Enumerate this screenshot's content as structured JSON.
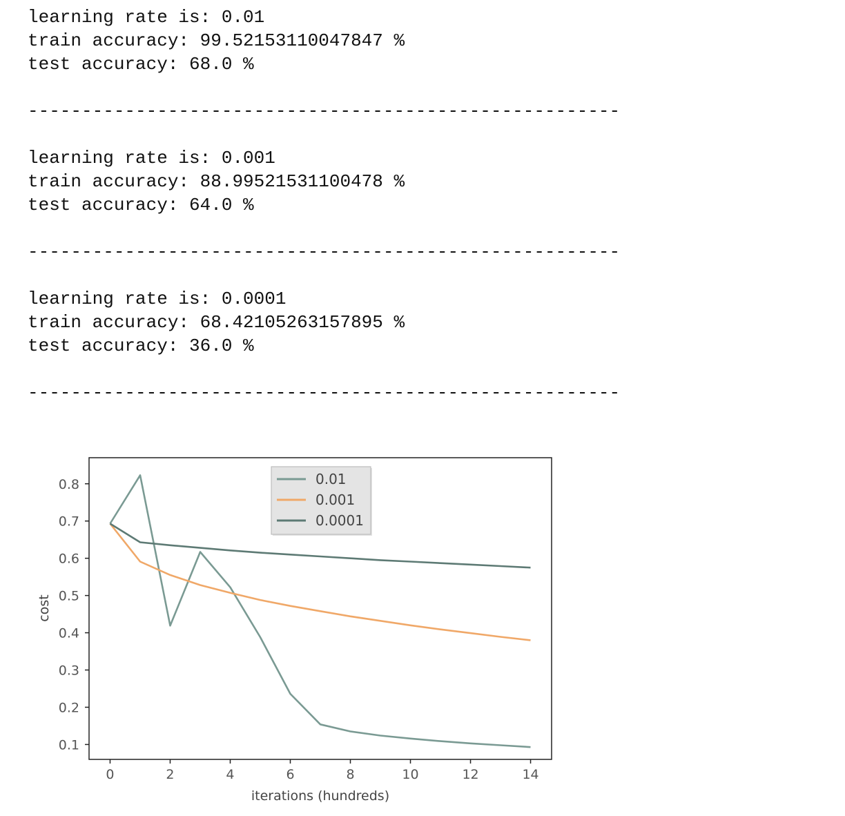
{
  "runs": [
    {
      "lr_line": "learning rate is: 0.01",
      "train_line": "train accuracy: 99.52153110047847 %",
      "test_line": "test accuracy: 68.0 %"
    },
    {
      "lr_line": "learning rate is: 0.001",
      "train_line": "train accuracy: 88.99521531100478 %",
      "test_line": "test accuracy: 64.0 %"
    },
    {
      "lr_line": "learning rate is: 0.0001",
      "train_line": "train accuracy: 68.42105263157895 %",
      "test_line": "test accuracy: 36.0 %"
    }
  ],
  "separator": "-------------------------------------------------------",
  "chart_data": {
    "type": "line",
    "xlabel": "iterations (hundreds)",
    "ylabel": "cost",
    "xlim": [
      -0.7,
      14.7
    ],
    "ylim": [
      0.06,
      0.87
    ],
    "xticks": [
      "0",
      "2",
      "4",
      "6",
      "8",
      "10",
      "12",
      "14"
    ],
    "yticks": [
      "0.1",
      "0.2",
      "0.3",
      "0.4",
      "0.5",
      "0.6",
      "0.7",
      "0.8"
    ],
    "grid": false,
    "legend_position": "top-center",
    "x": [
      0,
      1,
      2,
      3,
      4,
      5,
      6,
      7,
      8,
      9,
      10,
      11,
      12,
      13,
      14
    ],
    "series": [
      {
        "name": "0.01",
        "color": "#7a9a93",
        "values": [
          0.693,
          0.823,
          0.419,
          0.617,
          0.522,
          0.388,
          0.236,
          0.154,
          0.135,
          0.124,
          0.116,
          0.109,
          0.103,
          0.098,
          0.093
        ]
      },
      {
        "name": "0.001",
        "color": "#f0a868",
        "values": [
          0.693,
          0.591,
          0.555,
          0.528,
          0.507,
          0.488,
          0.472,
          0.458,
          0.444,
          0.432,
          0.42,
          0.409,
          0.399,
          0.389,
          0.38
        ]
      },
      {
        "name": "0.0001",
        "color": "#5d7a74",
        "values": [
          0.693,
          0.643,
          0.635,
          0.628,
          0.621,
          0.615,
          0.61,
          0.605,
          0.6,
          0.595,
          0.591,
          0.587,
          0.583,
          0.579,
          0.575
        ]
      }
    ]
  }
}
